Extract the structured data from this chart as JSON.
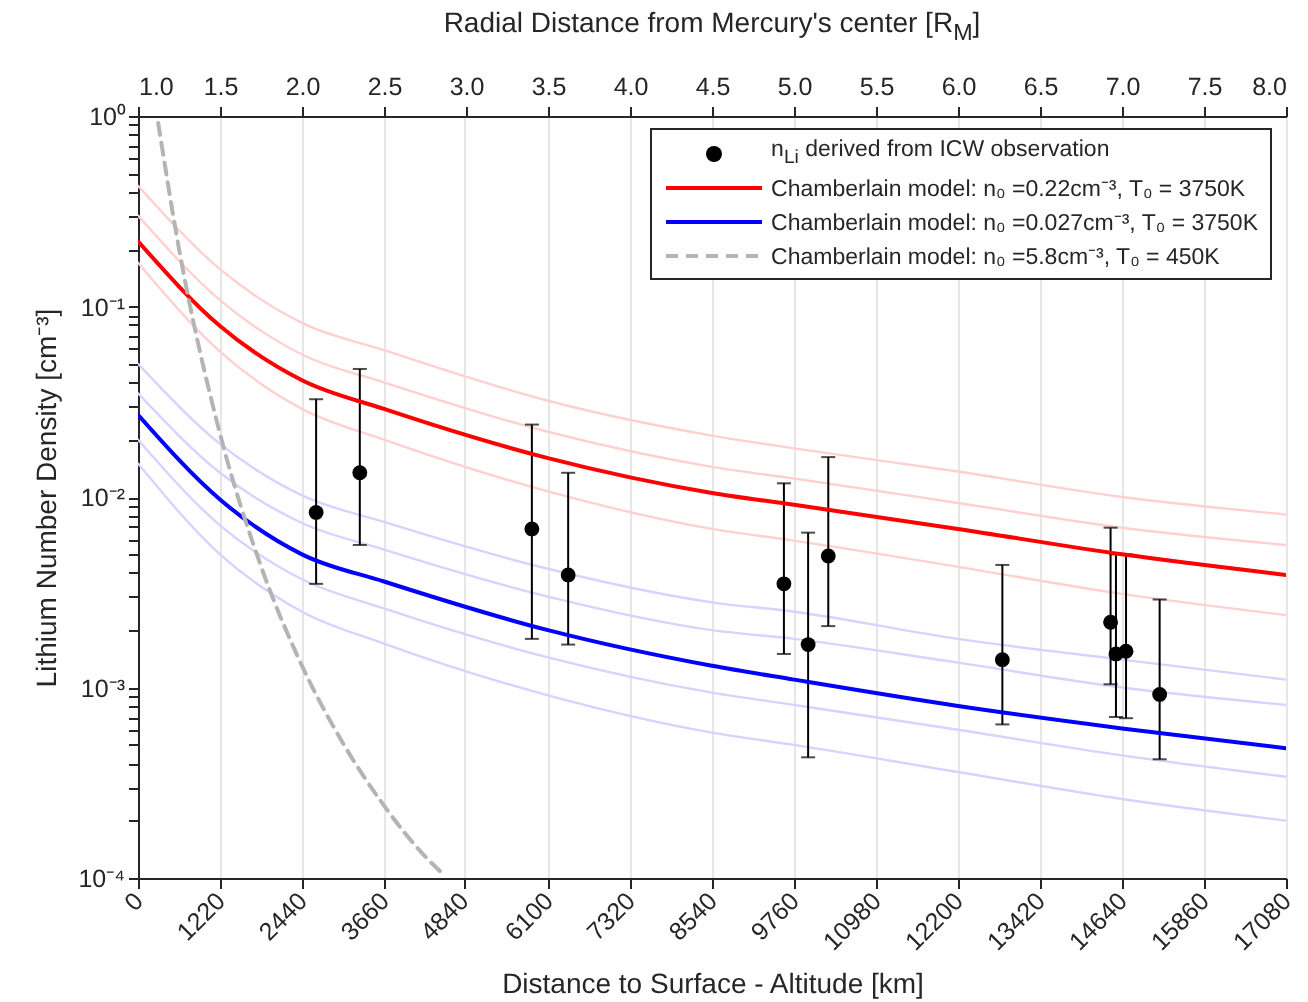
{
  "chart_data": {
    "type": "line",
    "xlabel": "Distance to Surface - Altitude [km]",
    "ylabel": "Lithium Number Density [cm⁻³]",
    "x2label": "Radial Distance from Mercury's center  [R$_{M}$]",
    "xlim": [
      0,
      17080
    ],
    "xticks": [
      0,
      1220,
      2440,
      3660,
      4840,
      6100,
      7320,
      8540,
      9760,
      10980,
      12200,
      13420,
      14640,
      15860,
      17080
    ],
    "x2lim": [
      1,
      8
    ],
    "x2ticks": [
      {
        "value": 1,
        "label": "1.0"
      },
      1.5,
      {
        "value": 2,
        "label": "2.0"
      },
      2.5,
      {
        "value": 3,
        "label": "3.0"
      },
      3.5,
      {
        "value": 4,
        "label": "4.0"
      },
      4.5,
      {
        "value": 5,
        "label": "5.0"
      },
      5.5,
      {
        "value": 6,
        "label": "6.0"
      },
      6.5,
      {
        "value": 7,
        "label": "7.0"
      },
      7.5,
      {
        "value": 8,
        "label": "8.0"
      }
    ],
    "ylim": [
      0.0001,
      1
    ],
    "yticks": [
      {
        "value": 0.0001,
        "label": "10⁻⁴"
      },
      {
        "value": 0.0002,
        "label": null
      },
      {
        "value": 0.0003,
        "label": null
      },
      {
        "value": 0.0004,
        "label": null
      },
      {
        "value": 0.0005,
        "label": null
      },
      {
        "value": 0.0006,
        "label": null
      },
      {
        "value": 0.0007,
        "label": null
      },
      {
        "value": 0.0008,
        "label": null
      },
      {
        "value": 0.0009,
        "label": null
      },
      {
        "value": 0.001,
        "label": "10⁻³"
      },
      {
        "value": 0.002,
        "label": null
      },
      {
        "value": 0.003,
        "label": null
      },
      {
        "value": 0.004,
        "label": null
      },
      {
        "value": 0.005,
        "label": null
      },
      {
        "value": 0.006,
        "label": null
      },
      {
        "value": 0.007,
        "label": null
      },
      {
        "value": 0.008,
        "label": null
      },
      {
        "value": 0.009,
        "label": null
      },
      {
        "value": 0.01,
        "label": "10⁻²"
      },
      {
        "value": 0.02,
        "label": null
      },
      {
        "value": 0.03,
        "label": null
      },
      {
        "value": 0.04,
        "label": null
      },
      {
        "value": 0.05,
        "label": null
      },
      {
        "value": 0.06,
        "label": null
      },
      {
        "value": 0.07,
        "label": null
      },
      {
        "value": 0.08,
        "label": null
      },
      {
        "value": 0.09,
        "label": null
      },
      {
        "value": 0.1,
        "label": "10⁻¹"
      },
      {
        "value": 0.2,
        "label": null
      },
      {
        "value": 0.3,
        "label": null
      },
      {
        "value": 0.4,
        "label": null
      },
      {
        "value": 0.5,
        "label": null
      },
      {
        "value": 0.6,
        "label": null
      },
      {
        "value": 0.7,
        "label": null
      },
      {
        "value": 0.8,
        "label": null
      },
      {
        "value": 0.9,
        "label": null
      },
      {
        "value": 1,
        "label": "10⁰"
      }
    ],
    "log": true,
    "grid": "x",
    "legend": "top right",
    "series": [
      {
        "color": "#ffd0d0",
        "x": [
          0,
          1220,
          2440,
          3660,
          6100,
          8540,
          9760,
          12200,
          14640,
          17080
        ],
        "values": [
          0.43,
          0.157,
          0.082,
          0.059,
          0.032,
          0.021,
          0.018,
          0.0136,
          0.01,
          0.0081
        ]
      },
      {
        "color": "#ffd0d0",
        "x": [
          0,
          1220,
          2440,
          3660,
          6100,
          8540,
          9760,
          12200,
          14640,
          17080
        ],
        "values": [
          0.3,
          0.108,
          0.056,
          0.04,
          0.022,
          0.0144,
          0.0125,
          0.0093,
          0.0069,
          0.0056
        ]
      },
      {
        "color": "#ffd0d0",
        "x": [
          0,
          1220,
          2440,
          3660,
          6100,
          8540,
          9760,
          12200,
          14640,
          17080
        ],
        "values": [
          0.17,
          0.058,
          0.029,
          0.02,
          0.0107,
          0.0068,
          0.0059,
          0.0043,
          0.0031,
          0.0024
        ]
      },
      {
        "color": "#d4d4ff",
        "x": [
          0,
          1220,
          2440,
          3660,
          6100,
          8540,
          9760,
          12200,
          14640,
          17080
        ],
        "values": [
          0.05,
          0.019,
          0.0102,
          0.0074,
          0.0042,
          0.0028,
          0.0025,
          0.0018,
          0.0014,
          0.0011
        ]
      },
      {
        "color": "#d4d4ff",
        "x": [
          0,
          1220,
          2440,
          3660,
          6100,
          8540,
          9760,
          12200,
          14640,
          17080
        ],
        "values": [
          0.035,
          0.0134,
          0.0073,
          0.0053,
          0.003,
          0.002,
          0.0018,
          0.00135,
          0.001,
          0.00081
        ]
      },
      {
        "color": "#d4d4ff",
        "x": [
          0,
          1220,
          2440,
          3660,
          6100,
          8540,
          9760,
          12200,
          14640,
          17080
        ],
        "values": [
          0.02,
          0.0071,
          0.0037,
          0.0026,
          0.00144,
          0.00094,
          0.00081,
          0.0006,
          0.00044,
          0.00034
        ]
      },
      {
        "color": "#d4d4ff",
        "x": [
          0,
          1220,
          2440,
          3660,
          6100,
          8540,
          9760,
          12200,
          14640,
          17080
        ],
        "values": [
          0.015,
          0.005,
          0.0025,
          0.0017,
          0.00091,
          0.00058,
          0.0005,
          0.00036,
          0.00026,
          0.0002
        ]
      },
      {
        "name": "n$_{Li}$ derived from ICW observation",
        "type": "scatter",
        "marker": "circle",
        "color": "#000000",
        "x": [
          2650,
          3300,
          5860,
          6400,
          9610,
          9970,
          10270,
          12860,
          14470,
          14550,
          14700,
          15200
        ],
        "values": [
          0.0083,
          0.0134,
          0.0068,
          0.0039,
          0.0035,
          0.00168,
          0.0049,
          0.0014,
          0.0022,
          0.0015,
          0.00155,
          0.00092
        ],
        "errors": [
          [
            0.0035,
            0.0326
          ],
          [
            0.0056,
            0.047
          ],
          [
            0.0018,
            0.024
          ],
          [
            0.00168,
            0.0134
          ],
          [
            0.0015,
            0.0118
          ],
          [
            0.00043,
            0.0065
          ],
          [
            0.0021,
            0.0162
          ],
          [
            0.00064,
            0.0044
          ],
          [
            0.00104,
            0.0069
          ],
          [
            0.0007,
            0.005
          ],
          [
            0.00069,
            0.005
          ],
          [
            0.00042,
            0.0029
          ]
        ]
      },
      {
        "name": "Chamberlain model: n₀ =0.22cm⁻³,  T₀ = 3750K",
        "color": "#ff0000",
        "x": [
          0,
          1220,
          2440,
          3660,
          6100,
          8540,
          9760,
          12200,
          14640,
          17080
        ],
        "values": [
          0.22,
          0.079,
          0.041,
          0.029,
          0.016,
          0.0105,
          0.0091,
          0.0068,
          0.005,
          0.0039
        ]
      },
      {
        "name": "Chamberlain model: n₀ =0.027cm⁻³, T₀ = 3750K",
        "color": "#0000ff",
        "x": [
          0,
          1220,
          2440,
          3660,
          6100,
          8540,
          9760,
          12200,
          14640,
          17080
        ],
        "values": [
          0.027,
          0.0097,
          0.005,
          0.0036,
          0.002,
          0.0013,
          0.0011,
          0.0008,
          0.00061,
          0.00048
        ]
      },
      {
        "name": "Chamberlain model: n₀ =5.8cm⁻³, T₀ = 450K",
        "color": "#b4b4b4",
        "line_style": "dashed",
        "x": [
          300,
          610,
          1220,
          1830,
          2440,
          3050,
          3660,
          4270,
          4500
        ],
        "values": [
          0.92,
          0.201,
          0.0215,
          0.00433,
          0.0013,
          0.00051,
          0.00024,
          0.00013,
          0.000108
        ]
      }
    ]
  }
}
